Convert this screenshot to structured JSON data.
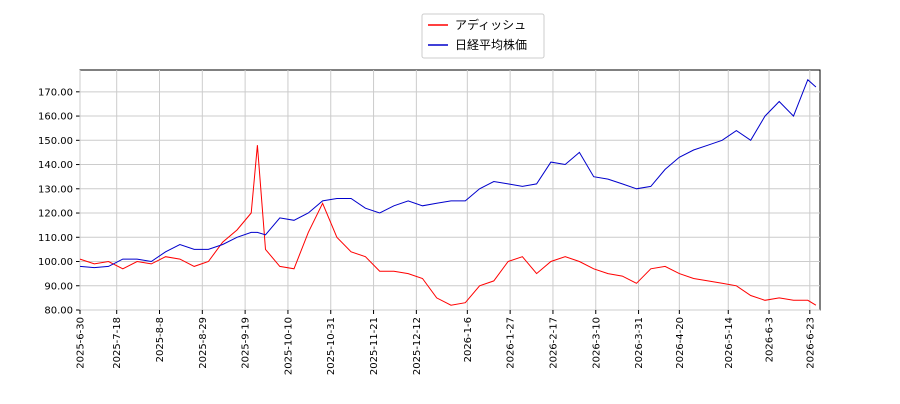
{
  "chart_data": {
    "type": "line",
    "x": [
      "2025-6-30",
      "2025-7-7",
      "2025-7-14",
      "2025-7-21",
      "2025-7-28",
      "2025-8-4",
      "2025-8-11",
      "2025-8-18",
      "2025-8-25",
      "2025-9-1",
      "2025-9-8",
      "2025-9-15",
      "2025-9-22",
      "2025-9-25",
      "2025-9-29",
      "2025-10-6",
      "2025-10-13",
      "2025-10-20",
      "2025-10-27",
      "2025-11-3",
      "2025-11-10",
      "2025-11-17",
      "2025-11-24",
      "2025-12-1",
      "2025-12-8",
      "2025-12-15",
      "2025-12-22",
      "2025-12-29",
      "2026-1-5",
      "2026-1-12",
      "2026-1-19",
      "2026-1-26",
      "2026-2-2",
      "2026-2-9",
      "2026-2-16",
      "2026-2-23",
      "2026-3-2",
      "2026-3-9",
      "2026-3-16",
      "2026-3-23",
      "2026-3-30",
      "2026-4-6",
      "2026-4-13",
      "2026-4-20",
      "2026-4-27",
      "2026-5-4",
      "2026-5-11",
      "2026-5-18",
      "2026-5-25",
      "2026-6-1",
      "2026-6-8",
      "2026-6-15",
      "2026-6-22",
      "2026-6-26"
    ],
    "series": [
      {
        "name": "アディッシュ",
        "color": "#ff0000",
        "values": [
          101,
          99,
          100,
          97,
          100,
          99,
          102,
          101,
          98,
          100,
          108,
          113,
          120,
          148,
          105,
          98,
          97,
          112,
          124,
          110,
          104,
          102,
          96,
          96,
          95,
          93,
          85,
          82,
          83,
          90,
          92,
          100,
          102,
          95,
          100,
          102,
          100,
          97,
          95,
          94,
          91,
          97,
          98,
          95,
          93,
          92,
          91,
          90,
          86,
          84,
          85,
          84,
          84,
          82
        ]
      },
      {
        "name": "日経平均株価",
        "color": "#0000cc",
        "values": [
          98,
          97.5,
          98,
          101,
          101,
          100,
          104,
          107,
          105,
          105,
          107,
          110,
          112,
          112,
          111,
          118,
          117,
          120,
          125,
          126,
          126,
          122,
          120,
          123,
          125,
          123,
          124,
          125,
          125,
          130,
          133,
          132,
          131,
          132,
          141,
          140,
          145,
          135,
          134,
          132,
          130,
          131,
          138,
          143,
          146,
          148,
          150,
          154,
          150,
          160,
          166,
          160,
          175,
          172
        ]
      }
    ],
    "xlim": [
      "2025-6-30",
      "2026-6-28"
    ],
    "xticks": [
      "2025-6-30",
      "2025-7-18",
      "2025-8-8",
      "2025-8-29",
      "2025-9-19",
      "2025-10-10",
      "2025-10-31",
      "2025-11-21",
      "2025-12-12",
      "2026-1-6",
      "2026-1-27",
      "2026-2-17",
      "2026-3-10",
      "2026-3-31",
      "2026-4-20",
      "2026-5-14",
      "2026-6-3",
      "2026-6-23"
    ],
    "ylim": [
      80,
      179
    ],
    "yticks": [
      {
        "value": 80,
        "label": "80.00"
      },
      {
        "value": 90,
        "label": "90.00"
      },
      {
        "value": 100,
        "label": "100.00"
      },
      {
        "value": 110,
        "label": "110.00"
      },
      {
        "value": 120,
        "label": "120.00"
      },
      {
        "value": 130,
        "label": "130.00"
      },
      {
        "value": 140,
        "label": "140.00"
      },
      {
        "value": 150,
        "label": "150.00"
      },
      {
        "value": 160,
        "label": "160.00"
      },
      {
        "value": 170,
        "label": "170.00"
      }
    ],
    "grid": true
  }
}
